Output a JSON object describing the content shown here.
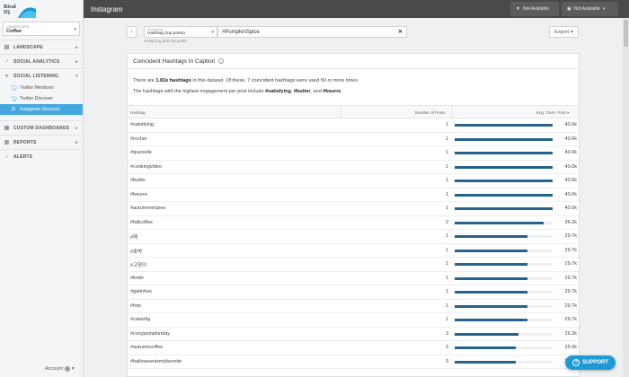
{
  "app": {
    "logo_line1": "Rival",
    "logo_line2": "IQ",
    "page_title": "Instagram",
    "brand_color": "#1e9bd7",
    "bar_color": "#24648c"
  },
  "sidebar": {
    "landscape_label": "LANDSCAPE",
    "landscape_value": "Coffee",
    "nav": [
      {
        "label": "LANDSCAPE",
        "icon": "layers-icon"
      },
      {
        "label": "SOCIAL ANALYTICS",
        "icon": "analytics-icon"
      },
      {
        "label": "SOCIAL LISTENING",
        "icon": "chat-icon"
      }
    ],
    "sub_items": [
      {
        "label": "Twitter Mentions",
        "icon": "twitter-icon"
      },
      {
        "label": "Twitter Discover",
        "icon": "twitter-icon"
      },
      {
        "label": "Instagram Discover",
        "icon": "instagram-icon"
      }
    ],
    "nav2": [
      {
        "label": "CUSTOM DASHBOARDS",
        "icon": "dashboard-icon"
      },
      {
        "label": "REPORTS",
        "icon": "reports-icon"
      },
      {
        "label": "ALERTS",
        "icon": "bell-icon"
      }
    ],
    "account_label": "Account"
  },
  "topbar": {
    "btn1": "Not Available",
    "btn2": "Not Available"
  },
  "filter": {
    "search_by_label": "Search by",
    "search_by_value": "Hashtag (top posts)",
    "query": "#PumpkinSpice",
    "analyzing": "Analyzing 250 top posts",
    "export_label": "Export"
  },
  "card": {
    "title": "Coincident Hashtags In Caption",
    "summary1_pre": "There are ",
    "summary1_bold": "1.81k hashtags",
    "summary1_post": " in this dataset. Of these, 7 coincident hashtags were used 50 or more times.",
    "summary2_pre": "The hashtags with the highest engagement per post include ",
    "summary2_b1": "#satisfying",
    "summary2_sep1": ", ",
    "summary2_b2": "#butter",
    "summary2_sep2": ", and ",
    "summary2_b3": "#beurre",
    "summary2_end": "."
  },
  "table": {
    "col_hashtag": "Hashtag",
    "col_posts": "Number of Posts",
    "col_eng": "Eng. Total / Post",
    "max_value": 40.0,
    "rows": [
      {
        "tag": "#satisfying",
        "posts": "1",
        "value": 40.0,
        "label": "40.0k"
      },
      {
        "tag": "#rocher",
        "posts": "1",
        "value": 40.0,
        "label": "40.0k"
      },
      {
        "tag": "#quenelle",
        "posts": "1",
        "value": 40.0,
        "label": "40.0k"
      },
      {
        "tag": "#cookingvideo",
        "posts": "1",
        "value": 40.0,
        "label": "40.0k"
      },
      {
        "tag": "#butter",
        "posts": "1",
        "value": 40.0,
        "label": "40.0k"
      },
      {
        "tag": "#beurre",
        "posts": "1",
        "value": 40.0,
        "label": "40.0k"
      },
      {
        "tag": "#autumnrecipes",
        "posts": "1",
        "value": 40.0,
        "label": "40.0k"
      },
      {
        "tag": "#fallcoffee",
        "posts": "2",
        "value": 36.2,
        "label": "36.2k"
      },
      {
        "tag": "#핵",
        "posts": "1",
        "value": 29.7,
        "label": "29.7k"
      },
      {
        "tag": "#호박",
        "posts": "1",
        "value": 29.7,
        "label": "29.7k"
      },
      {
        "tag": "#고양이",
        "posts": "1",
        "value": 29.7,
        "label": "29.7k"
      },
      {
        "tag": "#lindo",
        "posts": "1",
        "value": 29.7,
        "label": "29.7k"
      },
      {
        "tag": "#gatinhos",
        "posts": "1",
        "value": 29.7,
        "label": "29.7k"
      },
      {
        "tag": "#foto",
        "posts": "1",
        "value": 29.7,
        "label": "29.7k"
      },
      {
        "tag": "#catsofig",
        "posts": "1",
        "value": 29.7,
        "label": "29.7k"
      },
      {
        "tag": "#cozypumpkinday",
        "posts": "3",
        "value": 26.2,
        "label": "26.2k"
      },
      {
        "tag": "#autumncoffee",
        "posts": "3",
        "value": 25.0,
        "label": "25.0k"
      },
      {
        "tag": "#halloweenismyfavorite",
        "posts": "3",
        "value": 25.0,
        "label": "25.0k"
      }
    ]
  },
  "support_label": "SUPPORT"
}
